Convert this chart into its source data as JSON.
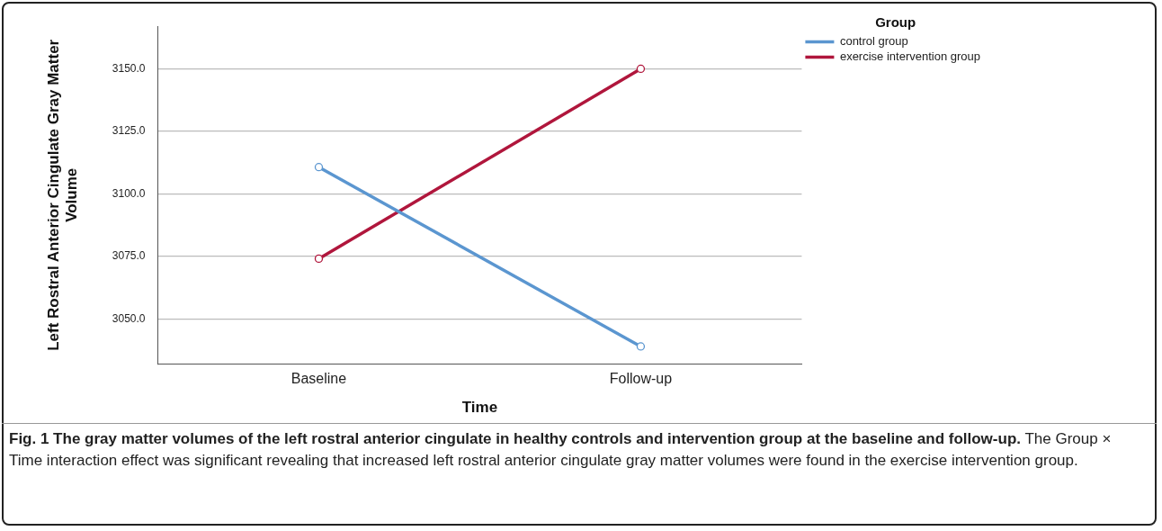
{
  "chart_data": {
    "type": "line",
    "xlabel": "Time",
    "ylabel": "Left Rostral Anterior Cingulate Gray Matter Volume",
    "legend_title": "Group",
    "categories": [
      "Baseline",
      "Follow-up"
    ],
    "series": [
      {
        "name": "control group",
        "color": "#5b96d0",
        "values": [
          3110.7,
          3039.0
        ]
      },
      {
        "name": "exercise intervention group",
        "color": "#b0163c",
        "values": [
          3074.1,
          3150.0
        ]
      }
    ],
    "ylim": [
      3032,
      3167
    ],
    "yticks": [
      {
        "value": 3050,
        "label": "3050.0"
      },
      {
        "value": 3075,
        "label": "3075.0"
      },
      {
        "value": 3100,
        "label": "3100.0"
      },
      {
        "value": 3125,
        "label": "3125.0"
      },
      {
        "value": 3150,
        "label": "3150.0"
      }
    ],
    "grid": "y",
    "legend": "top right",
    "marker": "circle",
    "line_style": "solid",
    "annotations": [
      "Fig. 1 The gray matter volumes of the left rostral anterior cingulate in healthy controls and intervention group at the baseline and follow-up.",
      "The Group × Time interaction effect was significant revealing that increased left rostral anterior cingulate gray matter volumes were found in the exercise intervention group."
    ]
  }
}
